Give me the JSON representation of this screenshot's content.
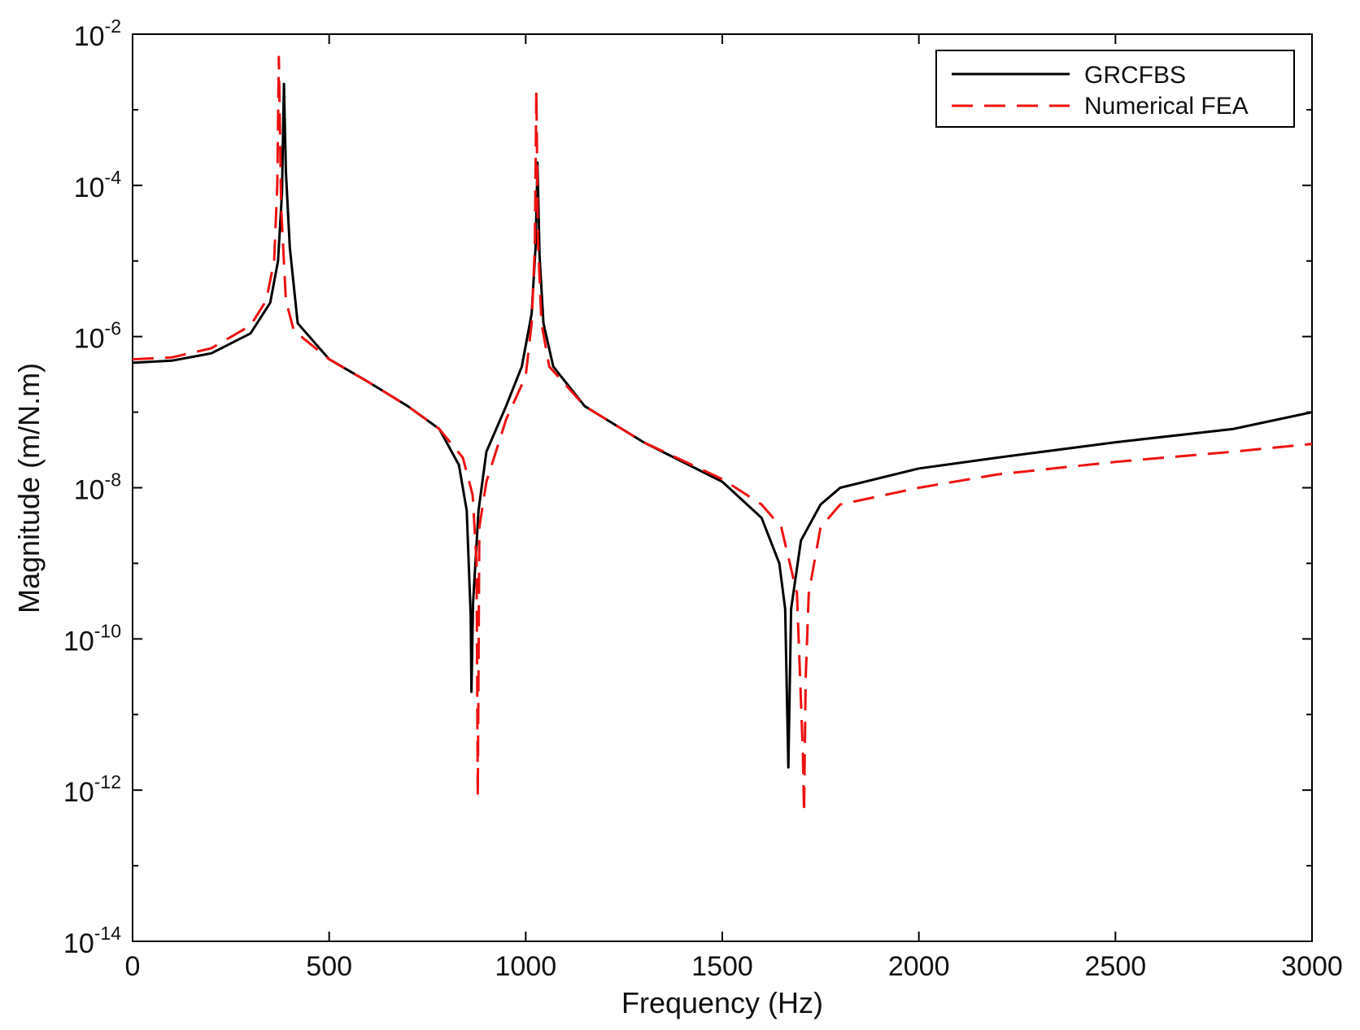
{
  "chart_data": {
    "type": "line",
    "xlabel": "Frequency (Hz)",
    "ylabel": "Magnitude (m/N.m)",
    "xlim": [
      0,
      3000
    ],
    "ylim": [
      1e-14,
      0.01
    ],
    "yscale": "log",
    "grid": false,
    "legend_position": "top-right",
    "x_ticks": [
      "0",
      "500",
      "1000",
      "1500",
      "2000",
      "2500",
      "3000"
    ],
    "y_ticks": [
      {
        "base": "10",
        "exp": "-14"
      },
      {
        "base": "10",
        "exp": "-12"
      },
      {
        "base": "10",
        "exp": "-10"
      },
      {
        "base": "10",
        "exp": "-8"
      },
      {
        "base": "10",
        "exp": "-6"
      },
      {
        "base": "10",
        "exp": "-4"
      },
      {
        "base": "10",
        "exp": "-2"
      }
    ],
    "series": [
      {
        "name": "GRCFBS",
        "color": "#000000",
        "dash": "solid",
        "points": [
          [
            0,
            4.5e-07
          ],
          [
            100,
            4.8e-07
          ],
          [
            200,
            6e-07
          ],
          [
            300,
            1.1e-06
          ],
          [
            350,
            2.8e-06
          ],
          [
            370,
            1e-05
          ],
          [
            380,
            8e-05
          ],
          [
            385,
            0.0022
          ],
          [
            390,
            0.00015
          ],
          [
            400,
            1.5e-05
          ],
          [
            420,
            1.5e-06
          ],
          [
            500,
            5e-07
          ],
          [
            600,
            2.5e-07
          ],
          [
            700,
            1.2e-07
          ],
          [
            780,
            6e-08
          ],
          [
            830,
            2e-08
          ],
          [
            850,
            5e-09
          ],
          [
            860,
            2e-10
          ],
          [
            862,
            2e-11
          ],
          [
            866,
            3e-10
          ],
          [
            880,
            5e-09
          ],
          [
            900,
            3e-08
          ],
          [
            950,
            1.2e-07
          ],
          [
            990,
            4e-07
          ],
          [
            1015,
            2e-06
          ],
          [
            1025,
            1.5e-05
          ],
          [
            1030,
            0.0002
          ],
          [
            1035,
            1.2e-05
          ],
          [
            1045,
            1.5e-06
          ],
          [
            1070,
            4e-07
          ],
          [
            1150,
            1.2e-07
          ],
          [
            1300,
            4e-08
          ],
          [
            1500,
            1.2e-08
          ],
          [
            1600,
            4e-09
          ],
          [
            1645,
            1e-09
          ],
          [
            1660,
            2.5e-10
          ],
          [
            1668,
            2e-12
          ],
          [
            1675,
            2.5e-10
          ],
          [
            1700,
            2e-09
          ],
          [
            1750,
            6e-09
          ],
          [
            1800,
            1e-08
          ],
          [
            2000,
            1.8e-08
          ],
          [
            2200,
            2.5e-08
          ],
          [
            2500,
            4e-08
          ],
          [
            2800,
            6e-08
          ],
          [
            3000,
            1e-07
          ]
        ]
      },
      {
        "name": "Numerical FEA",
        "color": "#ee1111",
        "dash": "dashed",
        "points": [
          [
            0,
            5e-07
          ],
          [
            100,
            5.3e-07
          ],
          [
            200,
            7e-07
          ],
          [
            300,
            1.4e-06
          ],
          [
            340,
            3e-06
          ],
          [
            360,
            1e-05
          ],
          [
            368,
            0.0001
          ],
          [
            372,
            0.005
          ],
          [
            378,
            5e-05
          ],
          [
            390,
            3e-06
          ],
          [
            410,
            1.2e-06
          ],
          [
            500,
            5e-07
          ],
          [
            600,
            2.5e-07
          ],
          [
            700,
            1.2e-07
          ],
          [
            780,
            6e-08
          ],
          [
            840,
            2.5e-08
          ],
          [
            865,
            8e-09
          ],
          [
            875,
            1e-09
          ],
          [
            878,
            8e-13
          ],
          [
            882,
            3e-09
          ],
          [
            900,
            1.2e-08
          ],
          [
            950,
            8e-08
          ],
          [
            1000,
            3e-07
          ],
          [
            1015,
            1.5e-06
          ],
          [
            1023,
            1.5e-05
          ],
          [
            1027,
            0.0018
          ],
          [
            1031,
            2e-05
          ],
          [
            1040,
            1.5e-06
          ],
          [
            1060,
            4e-07
          ],
          [
            1150,
            1.2e-07
          ],
          [
            1300,
            4e-08
          ],
          [
            1500,
            1.3e-08
          ],
          [
            1600,
            6e-09
          ],
          [
            1650,
            3e-09
          ],
          [
            1690,
            4e-10
          ],
          [
            1705,
            3e-12
          ],
          [
            1708,
            5e-13
          ],
          [
            1712,
            3e-11
          ],
          [
            1720,
            4e-10
          ],
          [
            1750,
            3e-09
          ],
          [
            1800,
            6e-09
          ],
          [
            2000,
            1e-08
          ],
          [
            2200,
            1.5e-08
          ],
          [
            2500,
            2.2e-08
          ],
          [
            2800,
            3e-08
          ],
          [
            3000,
            3.8e-08
          ]
        ]
      }
    ]
  }
}
